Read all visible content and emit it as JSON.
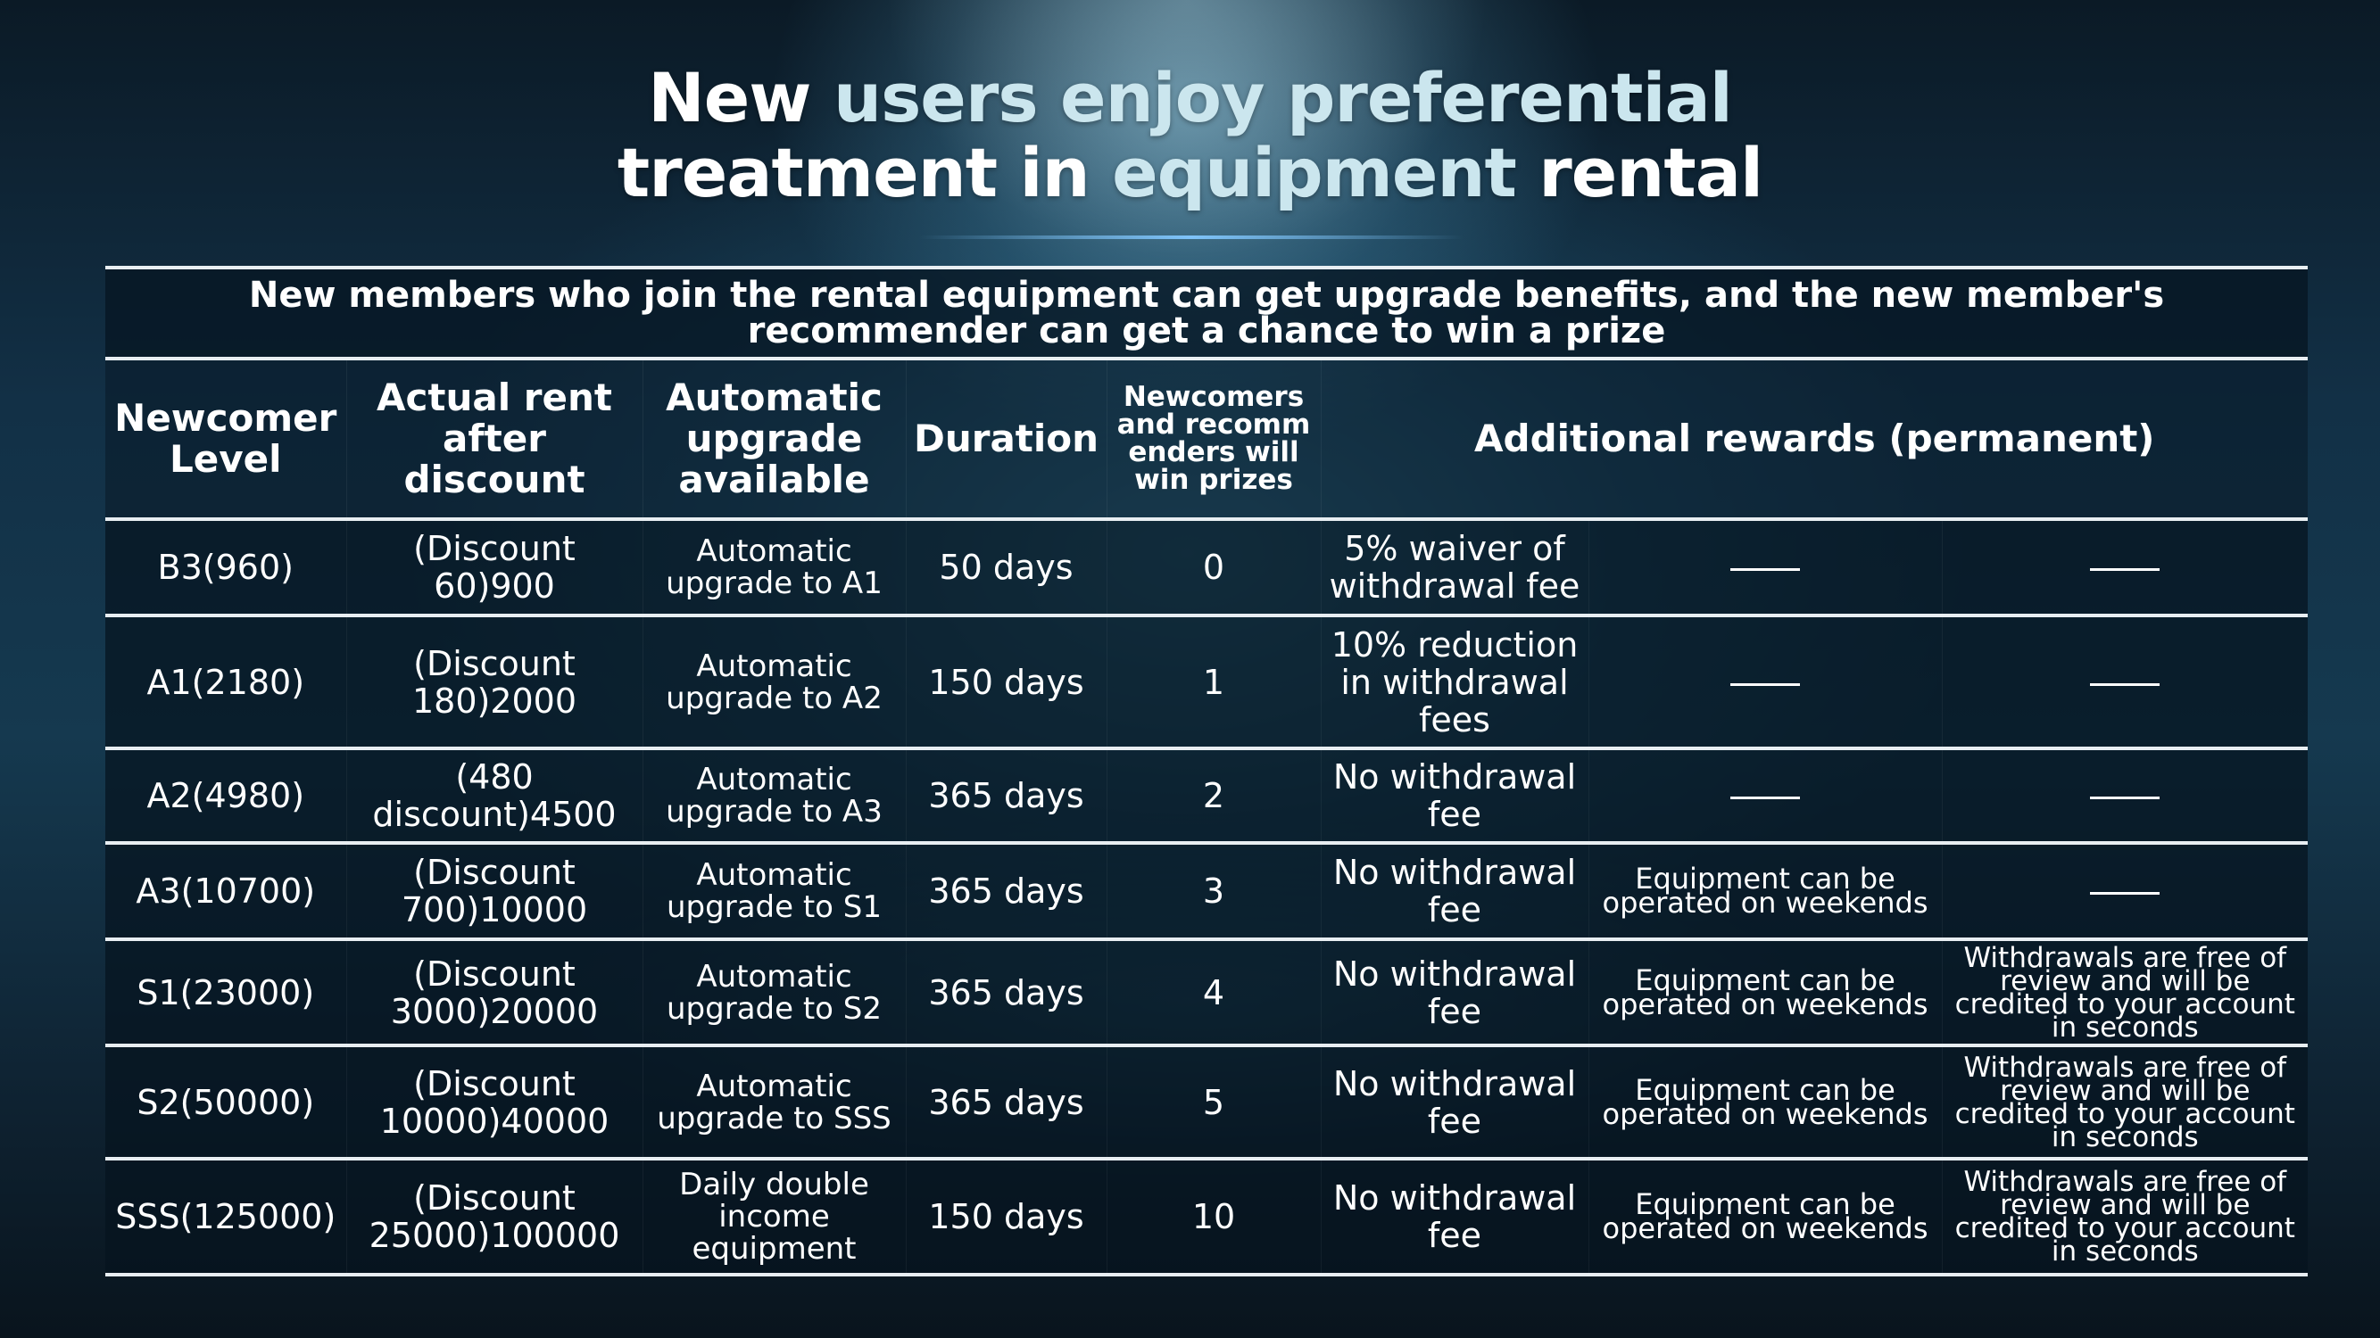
{
  "slide": {
    "title_line1_white": "New ",
    "title_line1_accent": "users enjoy preferential",
    "title_line2_white1": "treatment in ",
    "title_line2_accent": "equipment",
    "title_line2_white2": " rental"
  },
  "table": {
    "banner": "New members who join the rental equipment can get upgrade benefits, and the new member's recommender can get a chance to win a prize",
    "headers": {
      "level": "Newcomer Level",
      "rent": "Actual rent after discount",
      "upgrade": "Automatic upgrade available",
      "duration": "Duration",
      "prizes": "Newcomers and recommenders will win prizes",
      "rewards": "Additional rewards (permanent)"
    },
    "rows": [
      {
        "level": "B3(960)",
        "rent": "(Discount 60)900",
        "upgrade": "Automatic upgrade to A1",
        "duration": "50 days",
        "prizes": "0",
        "fee": "5% waiver of withdrawal fee",
        "weekend": "——",
        "review": "——"
      },
      {
        "level": "A1(2180)",
        "rent": "(Discount 180)2000",
        "upgrade": "Automatic upgrade to A2",
        "duration": "150 days",
        "prizes": "1",
        "fee": "10% reduction in withdrawal fees",
        "weekend": "——",
        "review": "——"
      },
      {
        "level": "A2(4980)",
        "rent": "(480 discount)4500",
        "upgrade": "Automatic upgrade to A3",
        "duration": "365 days",
        "prizes": "2",
        "fee": "No withdrawal fee",
        "weekend": "——",
        "review": "——"
      },
      {
        "level": "A3(10700)",
        "rent": "(Discount 700)10000",
        "upgrade": "Automatic upgrade to S1",
        "duration": "365 days",
        "prizes": "3",
        "fee": "No withdrawal fee",
        "weekend": "Equipment can be operated on weekends",
        "review": "——"
      },
      {
        "level": "S1(23000)",
        "rent": "(Discount 3000)20000",
        "upgrade": "Automatic upgrade to S2",
        "duration": "365 days",
        "prizes": "4",
        "fee": "No withdrawal fee",
        "weekend": "Equipment can be operated on weekends",
        "review": "Withdrawals are free of review and will be credited to your account in seconds"
      },
      {
        "level": "S2(50000)",
        "rent": "(Discount 10000)40000",
        "upgrade": "Automatic upgrade to SSS",
        "duration": "365 days",
        "prizes": "5",
        "fee": "No withdrawal fee",
        "weekend": "Equipment can be operated on weekends",
        "review": "Withdrawals are free of review and will be credited to your account in seconds"
      },
      {
        "level": "SSS(125000)",
        "rent": "(Discount 25000)100000",
        "upgrade": "Daily double income equipment",
        "duration": "150 days",
        "prizes": "10",
        "fee": "No withdrawal fee",
        "weekend": "Equipment can be operated on weekends",
        "review": "Withdrawals are free of review and will be credited to your account in seconds"
      }
    ]
  },
  "colors": {
    "text": "#ffffff",
    "title_accent": "#cbe6ee",
    "rule": "#e8eef2",
    "background": "#123046"
  }
}
